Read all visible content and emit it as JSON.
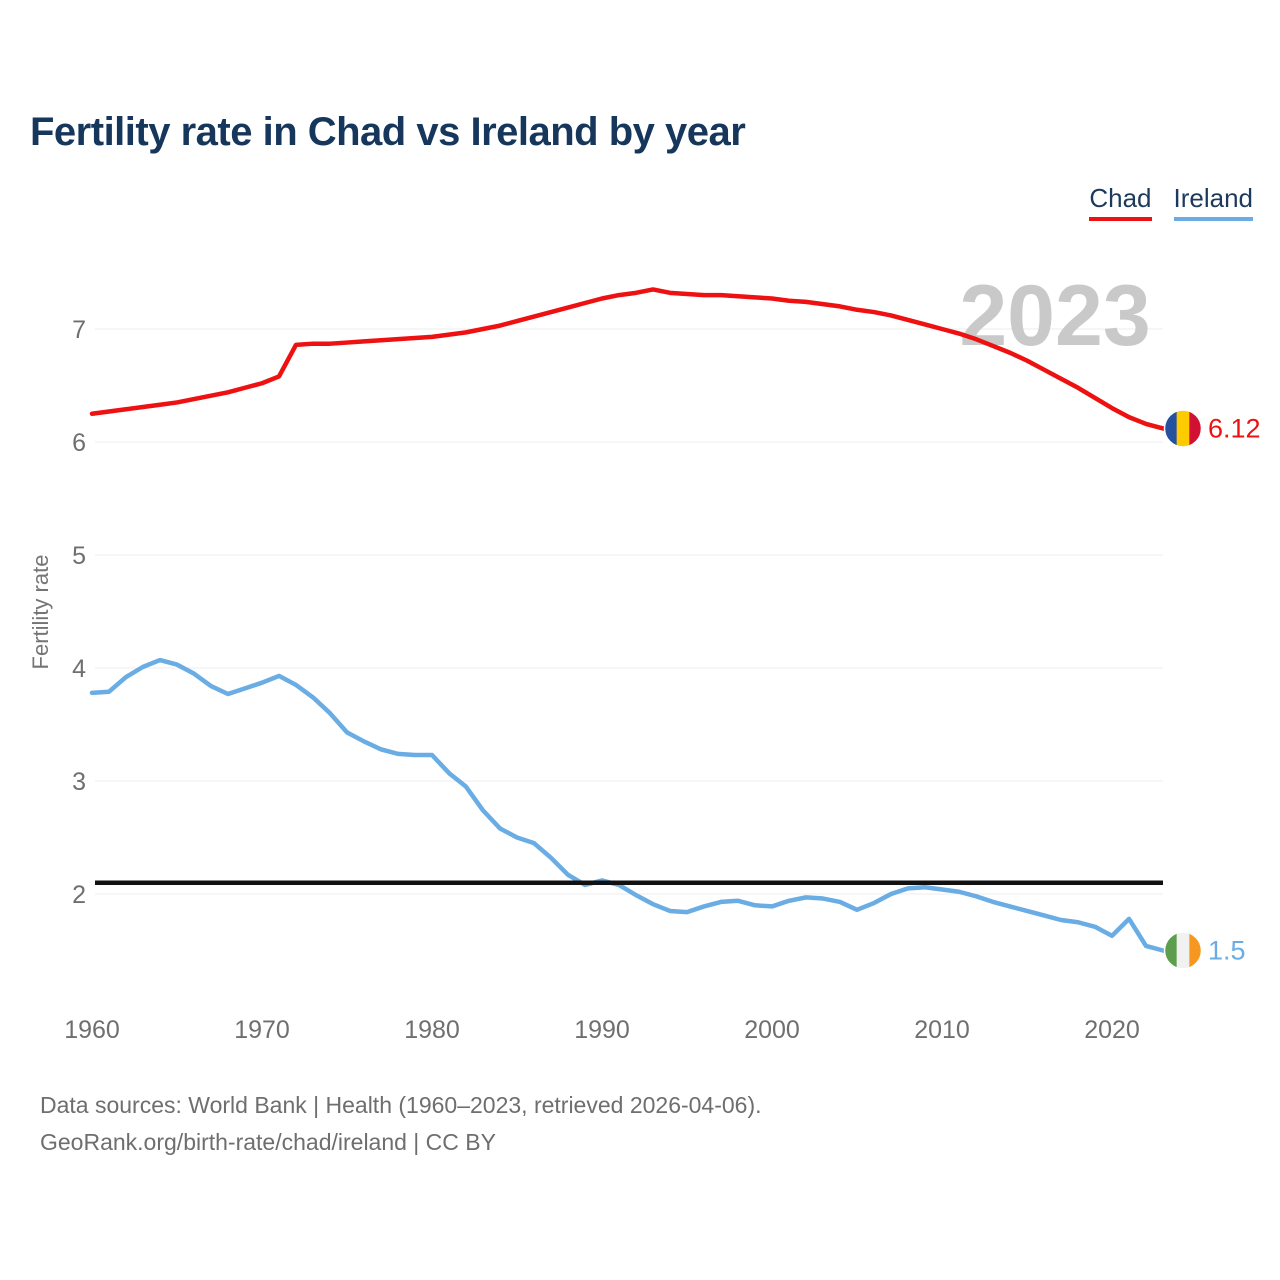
{
  "title": "Fertility rate in Chad vs Ireland by year",
  "watermark": "2023",
  "legend": [
    {
      "label": "Chad",
      "color": "#ee1111"
    },
    {
      "label": "Ireland",
      "color": "#6aace4"
    }
  ],
  "footer": {
    "line1": "Data sources: World Bank | Health (1960–2023, retrieved 2026-04-06).",
    "line2": "GeoRank.org/birth-rate/chad/ireland | CC BY"
  },
  "chart_data": {
    "type": "line",
    "title": "Fertility rate in Chad vs Ireland by year",
    "xlabel": "",
    "ylabel": "Fertility rate",
    "xlim": [
      1960,
      2023
    ],
    "ylim": [
      1.35,
      7.55
    ],
    "x_ticks": [
      1960,
      1970,
      1980,
      1990,
      2000,
      2010,
      2020
    ],
    "y_ticks": [
      2,
      3,
      4,
      5,
      6,
      7
    ],
    "grid": "horizontal",
    "legend_position": "top-right",
    "reference_line": {
      "value": 2.1,
      "color": "#111111"
    },
    "x": [
      1960,
      1961,
      1962,
      1963,
      1964,
      1965,
      1966,
      1967,
      1968,
      1969,
      1970,
      1971,
      1972,
      1973,
      1974,
      1975,
      1976,
      1977,
      1978,
      1979,
      1980,
      1981,
      1982,
      1983,
      1984,
      1985,
      1986,
      1987,
      1988,
      1989,
      1990,
      1991,
      1992,
      1993,
      1994,
      1995,
      1996,
      1997,
      1998,
      1999,
      2000,
      2001,
      2002,
      2003,
      2004,
      2005,
      2006,
      2007,
      2008,
      2009,
      2010,
      2011,
      2012,
      2013,
      2014,
      2015,
      2016,
      2017,
      2018,
      2019,
      2020,
      2021,
      2022,
      2023
    ],
    "series": [
      {
        "name": "Chad",
        "color": "#ee1111",
        "end_label": "6.12",
        "flag_icon": "chad-flag-icon",
        "flag_colors": [
          "#26519f",
          "#fecb00",
          "#d21034"
        ],
        "values": [
          6.25,
          6.27,
          6.29,
          6.31,
          6.33,
          6.35,
          6.38,
          6.41,
          6.44,
          6.48,
          6.52,
          6.58,
          6.86,
          6.87,
          6.87,
          6.88,
          6.89,
          6.9,
          6.91,
          6.92,
          6.93,
          6.95,
          6.97,
          7.0,
          7.03,
          7.07,
          7.11,
          7.15,
          7.19,
          7.23,
          7.27,
          7.3,
          7.32,
          7.35,
          7.32,
          7.31,
          7.3,
          7.3,
          7.29,
          7.28,
          7.27,
          7.25,
          7.24,
          7.22,
          7.2,
          7.17,
          7.15,
          7.12,
          7.08,
          7.04,
          7.0,
          6.96,
          6.91,
          6.85,
          6.79,
          6.72,
          6.64,
          6.56,
          6.48,
          6.39,
          6.3,
          6.22,
          6.16,
          6.12
        ]
      },
      {
        "name": "Ireland",
        "color": "#6aace4",
        "end_label": "1.5",
        "flag_icon": "ireland-flag-icon",
        "flag_colors": [
          "#5c9e4c",
          "#f1f1f1",
          "#f6981f"
        ],
        "values": [
          3.78,
          3.79,
          3.92,
          4.01,
          4.07,
          4.03,
          3.95,
          3.84,
          3.77,
          3.82,
          3.87,
          3.93,
          3.85,
          3.74,
          3.6,
          3.43,
          3.35,
          3.28,
          3.24,
          3.23,
          3.23,
          3.07,
          2.95,
          2.74,
          2.58,
          2.5,
          2.45,
          2.32,
          2.17,
          2.08,
          2.12,
          2.08,
          1.99,
          1.91,
          1.85,
          1.84,
          1.89,
          1.93,
          1.94,
          1.9,
          1.89,
          1.94,
          1.97,
          1.96,
          1.93,
          1.86,
          1.92,
          2.0,
          2.05,
          2.06,
          2.04,
          2.02,
          1.98,
          1.93,
          1.89,
          1.85,
          1.81,
          1.77,
          1.75,
          1.71,
          1.63,
          1.78,
          1.54,
          1.5
        ]
      }
    ]
  }
}
